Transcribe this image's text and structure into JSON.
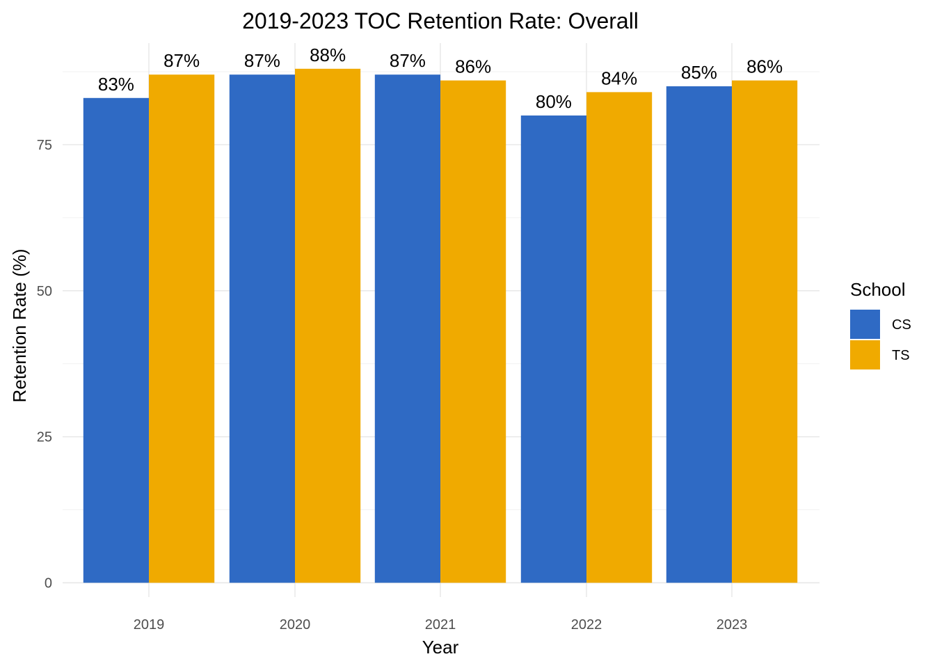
{
  "chart_data": {
    "type": "bar",
    "title": "2019-2023 TOC Retention Rate: Overall",
    "xlabel": "Year",
    "ylabel": "Retention Rate (%)",
    "categories": [
      "2019",
      "2020",
      "2021",
      "2022",
      "2023"
    ],
    "series": [
      {
        "name": "CS",
        "color": "#2f6ac4",
        "values": [
          83,
          87,
          87,
          80,
          85
        ],
        "labels": [
          "83%",
          "87%",
          "87%",
          "80%",
          "85%"
        ]
      },
      {
        "name": "TS",
        "color": "#f0aa00",
        "values": [
          87,
          88,
          86,
          84,
          86
        ],
        "labels": [
          "87%",
          "88%",
          "86%",
          "84%",
          "86%"
        ]
      }
    ],
    "ylim": [
      0,
      88
    ],
    "yticks": [
      0,
      25,
      50,
      75
    ],
    "ytick_labels": [
      "0",
      "25",
      "50",
      "75"
    ],
    "grid": true,
    "legend": {
      "title": "School",
      "position": "right"
    }
  }
}
